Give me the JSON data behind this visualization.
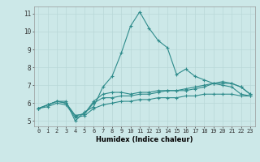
{
  "x": [
    0,
    1,
    2,
    3,
    4,
    5,
    6,
    7,
    8,
    9,
    10,
    11,
    12,
    13,
    14,
    15,
    16,
    17,
    18,
    19,
    20,
    21,
    22,
    23
  ],
  "line1": [
    5.7,
    5.9,
    6.1,
    6.1,
    5.0,
    5.5,
    5.8,
    6.9,
    7.5,
    8.8,
    10.3,
    11.1,
    10.2,
    9.5,
    9.1,
    7.6,
    7.9,
    7.5,
    7.3,
    7.1,
    7.0,
    6.9,
    6.5,
    6.4
  ],
  "line2": [
    5.7,
    5.9,
    6.1,
    6.0,
    5.3,
    5.4,
    6.1,
    6.5,
    6.6,
    6.6,
    6.5,
    6.6,
    6.6,
    6.7,
    6.7,
    6.7,
    6.7,
    6.8,
    6.9,
    7.1,
    7.1,
    7.1,
    6.9,
    6.5
  ],
  "line3": [
    5.7,
    5.9,
    6.1,
    6.0,
    5.3,
    5.4,
    6.0,
    6.3,
    6.3,
    6.4,
    6.4,
    6.5,
    6.5,
    6.6,
    6.7,
    6.7,
    6.8,
    6.9,
    7.0,
    7.1,
    7.2,
    7.1,
    6.9,
    6.5
  ],
  "line4": [
    5.7,
    5.8,
    6.0,
    5.9,
    5.2,
    5.3,
    5.7,
    5.9,
    6.0,
    6.1,
    6.1,
    6.2,
    6.2,
    6.3,
    6.3,
    6.3,
    6.4,
    6.4,
    6.5,
    6.5,
    6.5,
    6.5,
    6.4,
    6.4
  ],
  "color": "#2e8b8b",
  "bg_color": "#cce8e8",
  "grid_color": "#b8d8d8",
  "ylabel_values": [
    5,
    6,
    7,
    8,
    9,
    10,
    11
  ],
  "xlabel": "Humidex (Indice chaleur)",
  "xlim": [
    -0.5,
    23.5
  ],
  "ylim": [
    4.7,
    11.4
  ],
  "xtick_fontsize": 5.0,
  "ytick_fontsize": 5.5,
  "xlabel_fontsize": 6.0
}
